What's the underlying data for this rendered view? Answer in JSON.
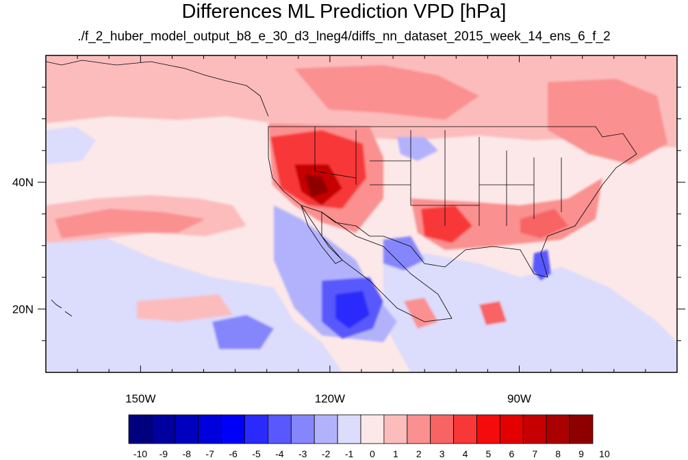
{
  "title": "Differences ML Prediction VPD [hPa]",
  "subtitle": "./f_2_huber_model_output_b8_e_30_d3_lneg4/diffs_nn_dataset_2015_week_14_ens_6_f_2",
  "map": {
    "projection": "lat-lon",
    "lon_range": [
      -165,
      -65
    ],
    "lat_range": [
      10,
      60
    ],
    "lon_ticks": [
      {
        "value": -150,
        "label": "150W"
      },
      {
        "value": -120,
        "label": "120W"
      },
      {
        "value": -90,
        "label": "90W"
      }
    ],
    "lat_ticks": [
      {
        "value": 40,
        "label": "40N"
      },
      {
        "value": 20,
        "label": "20N"
      }
    ],
    "field": "VPD prediction difference",
    "units": "hPa"
  },
  "colorbar": {
    "labels": [
      "-10",
      "-9",
      "-8",
      "-7",
      "-6",
      "-5",
      "-4",
      "-3",
      "-2",
      "-1",
      "0",
      "1",
      "2",
      "3",
      "4",
      "5",
      "6",
      "7",
      "8",
      "9",
      "10"
    ],
    "colors": [
      "#00007e",
      "#00009e",
      "#0000be",
      "#0000dc",
      "#0000f8",
      "#2a2afc",
      "#5858fc",
      "#8686fc",
      "#b2b2fc",
      "#dcdcfc",
      "#fce8e8",
      "#fcbcbc",
      "#fa9090",
      "#f86464",
      "#f83838",
      "#f40c0c",
      "#e20000",
      "#c60000",
      "#aa0000",
      "#8e0000"
    ]
  },
  "colors": {
    "ocean_base": "#fce8e8",
    "coast": "#000000"
  }
}
